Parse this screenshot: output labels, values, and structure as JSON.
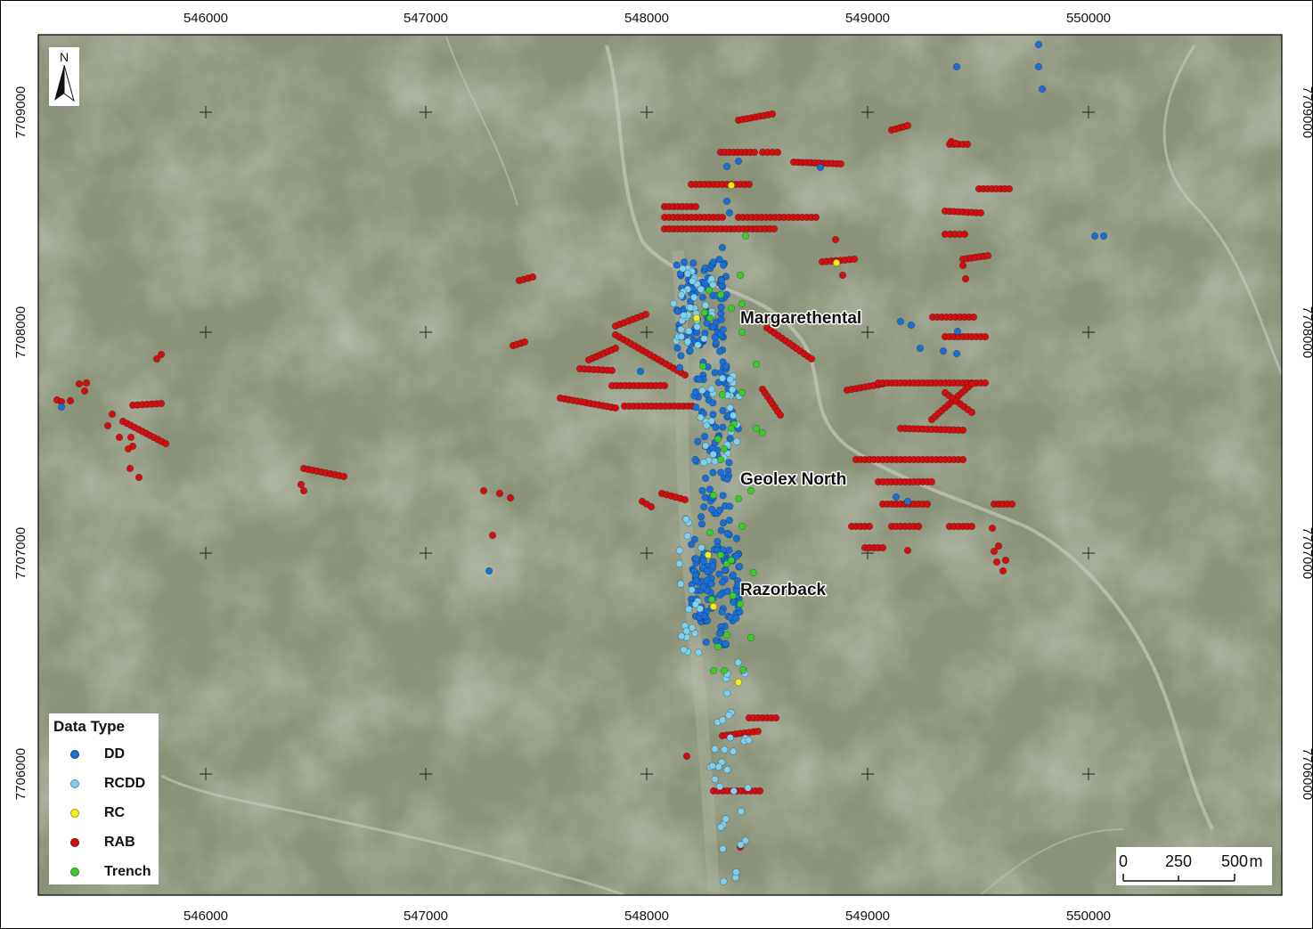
{
  "map": {
    "x_ticks": [
      "546000",
      "547000",
      "548000",
      "549000",
      "550000"
    ],
    "y_ticks": [
      "7709000",
      "7708000",
      "7707000",
      "7706000"
    ],
    "places": [
      "Margarethental",
      "Geolex North",
      "Razorback"
    ]
  },
  "north_arrow": {
    "label": "N"
  },
  "legend": {
    "title": "Data Type",
    "items": [
      {
        "label": "DD",
        "color": "#1a6fd6"
      },
      {
        "label": "RCDD",
        "color": "#7fd0ee"
      },
      {
        "label": "RC",
        "color": "#f2ee1c"
      },
      {
        "label": "RAB",
        "color": "#d01010"
      },
      {
        "label": "Trench",
        "color": "#3ccc2a"
      }
    ]
  },
  "scale_bar": {
    "labels": [
      "0",
      "250",
      "500"
    ],
    "unit": "m"
  },
  "colors": {
    "dd": "#1a6fd6",
    "rcdd": "#7fd0ee",
    "rc": "#f2ee1c",
    "rab": "#d01010",
    "trench": "#3ccc2a",
    "terrain": "#8a9379"
  }
}
